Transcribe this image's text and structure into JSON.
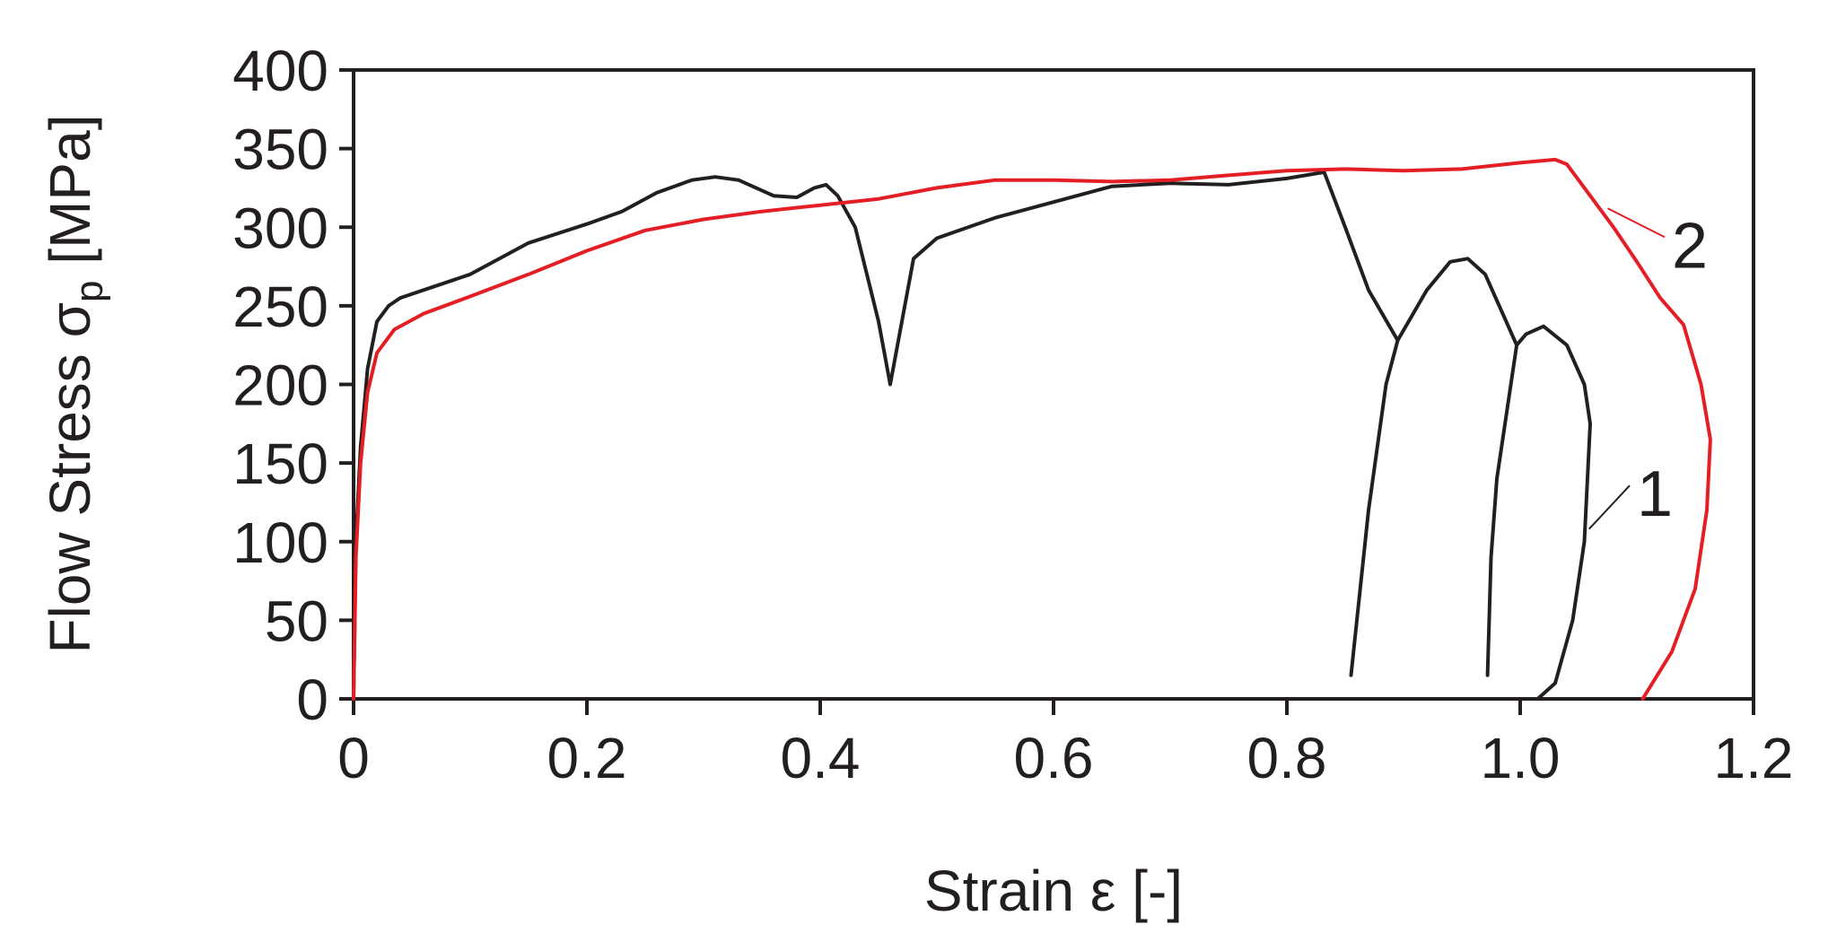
{
  "chart_data": {
    "type": "line",
    "title": "",
    "xlabel": "Strain ε [-]",
    "ylabel_prefix": "Flow Stress σ",
    "ylabel_subscript": "p",
    "ylabel_suffix": " [MPa]",
    "xlim": [
      0,
      1.2
    ],
    "ylim": [
      0,
      400
    ],
    "x_ticks": [
      "0",
      "0.2",
      "0.4",
      "0.6",
      "0.8",
      "1.0",
      "1.2"
    ],
    "x_tick_values": [
      0,
      0.2,
      0.4,
      0.6,
      0.8,
      1.0,
      1.2
    ],
    "y_ticks": [
      "0",
      "50",
      "100",
      "150",
      "200",
      "250",
      "300",
      "350",
      "400"
    ],
    "y_tick_values": [
      0,
      50,
      100,
      150,
      200,
      250,
      300,
      350,
      400
    ],
    "grid": false,
    "legend": "none",
    "annotations": [
      {
        "text": "1",
        "target_series": "1",
        "x": 1.1,
        "y": 130,
        "leader_to": [
          1.059,
          108
        ]
      },
      {
        "text": "2",
        "target_series": "2",
        "x": 1.13,
        "y": 288,
        "leader_to": [
          1.075,
          312
        ]
      }
    ],
    "series": [
      {
        "name": "1",
        "color": "#231f20",
        "segments": [
          [
            [
              0,
              0
            ],
            [
              0.002,
              100
            ],
            [
              0.006,
              160
            ],
            [
              0.012,
              210
            ],
            [
              0.02,
              240
            ],
            [
              0.03,
              250
            ],
            [
              0.04,
              255
            ],
            [
              0.06,
              260
            ],
            [
              0.1,
              270
            ],
            [
              0.15,
              290
            ],
            [
              0.2,
              302
            ],
            [
              0.23,
              310
            ],
            [
              0.26,
              322
            ],
            [
              0.29,
              330
            ],
            [
              0.31,
              332
            ],
            [
              0.33,
              330
            ],
            [
              0.36,
              320
            ],
            [
              0.38,
              319
            ],
            [
              0.395,
              325
            ],
            [
              0.405,
              327
            ],
            [
              0.415,
              320
            ],
            [
              0.43,
              300
            ],
            [
              0.44,
              270
            ],
            [
              0.45,
              240
            ],
            [
              0.46,
              200
            ],
            [
              0.47,
              240
            ],
            [
              0.48,
              280
            ],
            [
              0.5,
              293
            ],
            [
              0.55,
              306
            ],
            [
              0.6,
              316
            ],
            [
              0.65,
              326
            ],
            [
              0.7,
              328
            ],
            [
              0.75,
              327
            ],
            [
              0.8,
              331
            ],
            [
              0.832,
              335
            ],
            [
              0.85,
              300
            ],
            [
              0.87,
              260
            ],
            [
              0.895,
              228
            ]
          ],
          [
            [
              0.855,
              15
            ],
            [
              0.87,
              120
            ],
            [
              0.885,
              200
            ],
            [
              0.895,
              228
            ],
            [
              0.92,
              260
            ],
            [
              0.94,
              278
            ],
            [
              0.955,
              280
            ],
            [
              0.97,
              270
            ],
            [
              0.985,
              245
            ],
            [
              0.997,
              225
            ]
          ],
          [
            [
              0.972,
              15
            ],
            [
              0.975,
              90
            ],
            [
              0.98,
              140
            ],
            [
              0.99,
              190
            ],
            [
              0.997,
              225
            ],
            [
              1.005,
              232
            ],
            [
              1.02,
              237
            ],
            [
              1.04,
              225
            ],
            [
              1.055,
              200
            ],
            [
              1.06,
              175
            ],
            [
              1.055,
              100
            ],
            [
              1.045,
              50
            ],
            [
              1.03,
              10
            ],
            [
              1.015,
              0
            ]
          ]
        ]
      },
      {
        "name": "2",
        "color": "#e31e24",
        "segments": [
          [
            [
              0,
              0
            ],
            [
              0.002,
              90
            ],
            [
              0.006,
              150
            ],
            [
              0.012,
              195
            ],
            [
              0.02,
              220
            ],
            [
              0.035,
              235
            ],
            [
              0.06,
              245
            ],
            [
              0.1,
              256
            ],
            [
              0.15,
              270
            ],
            [
              0.2,
              285
            ],
            [
              0.25,
              298
            ],
            [
              0.3,
              305
            ],
            [
              0.35,
              310
            ],
            [
              0.4,
              314
            ],
            [
              0.45,
              318
            ],
            [
              0.5,
              325
            ],
            [
              0.55,
              330
            ],
            [
              0.6,
              330
            ],
            [
              0.65,
              329
            ],
            [
              0.7,
              330
            ],
            [
              0.75,
              333
            ],
            [
              0.8,
              336
            ],
            [
              0.85,
              337
            ],
            [
              0.9,
              336
            ],
            [
              0.95,
              337
            ],
            [
              1.0,
              341
            ],
            [
              1.03,
              343
            ],
            [
              1.04,
              340
            ],
            [
              1.06,
              320
            ],
            [
              1.08,
              300
            ],
            [
              1.1,
              278
            ],
            [
              1.12,
              255
            ],
            [
              1.14,
              238
            ],
            [
              1.155,
              200
            ],
            [
              1.163,
              165
            ],
            [
              1.16,
              120
            ],
            [
              1.15,
              70
            ],
            [
              1.13,
              30
            ],
            [
              1.105,
              0
            ]
          ]
        ]
      }
    ]
  }
}
